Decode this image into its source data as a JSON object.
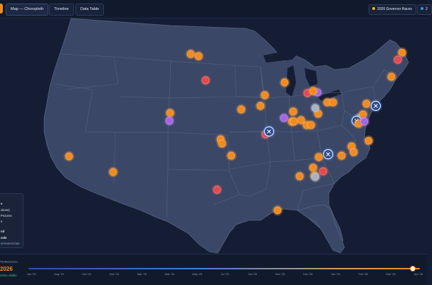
{
  "tabs": [
    {
      "label": "Map — Choropleth"
    },
    {
      "label": "Timeline"
    },
    {
      "label": "Data Table"
    }
  ],
  "legend_pills": [
    {
      "label": "2026 Governor Races",
      "color": "#f2b41e"
    },
    {
      "label": "2",
      "color": "#4d8de0"
    }
  ],
  "legend_panel": {
    "lines": [
      "e",
      "ctions)",
      "Process",
      "n",
      "",
      "nd",
      "cale",
      "ermanent ban"
    ]
  },
  "timeline": {
    "label": "THROUGH",
    "year": "2026",
    "subtitle": "ntries visible",
    "ticks": [
      "Jan '23",
      "Aug '23",
      "Oct '24",
      "Nov '24",
      "Mar '25",
      "Mar '25",
      "May '25",
      "Jul '25",
      "Oct '25",
      "Nov '25",
      "Dec '25",
      "Jan '26",
      "Feb '26",
      "Mar '26",
      "Apr '26"
    ],
    "progress": 0.98
  },
  "markers": {
    "colors": {
      "orange": "#f28a1e",
      "red": "#e5484d",
      "purple": "#a564e8",
      "gray": "#a9b0bf",
      "blue": "#4d8de0"
    },
    "count_orange": 46,
    "count_red": 6,
    "count_purple": 4,
    "count_gray": 2,
    "count_blue": 3,
    "icon": "close-icon"
  }
}
